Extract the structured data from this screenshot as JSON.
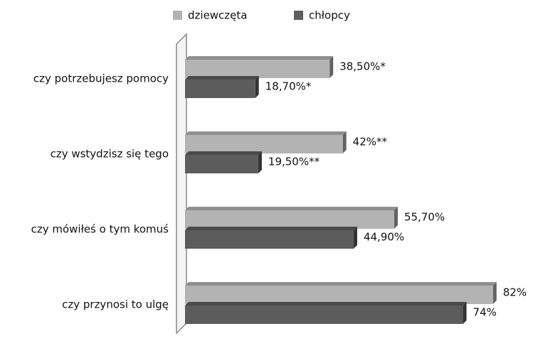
{
  "chart_data": {
    "type": "bar",
    "orientation": "horizontal",
    "categories": [
      "czy potrzebujesz pomocy",
      "czy wstydzisz się tego",
      "czy mówiłeś o tym komuś",
      "czy przynosi to ulgę"
    ],
    "series": [
      {
        "name": "dziewczęta",
        "color": "#b3b3b3",
        "values": [
          38.5,
          42,
          55.7,
          82
        ],
        "value_labels": [
          "38,50%*",
          "42%**",
          "55,70%",
          "82%"
        ]
      },
      {
        "name": "chłopcy",
        "color": "#5c5c5c",
        "values": [
          18.7,
          19.5,
          44.9,
          74
        ],
        "value_labels": [
          "18,70%*",
          "19,50%**",
          "44,90%",
          "74%"
        ]
      }
    ],
    "xlim": [
      0,
      90
    ]
  }
}
